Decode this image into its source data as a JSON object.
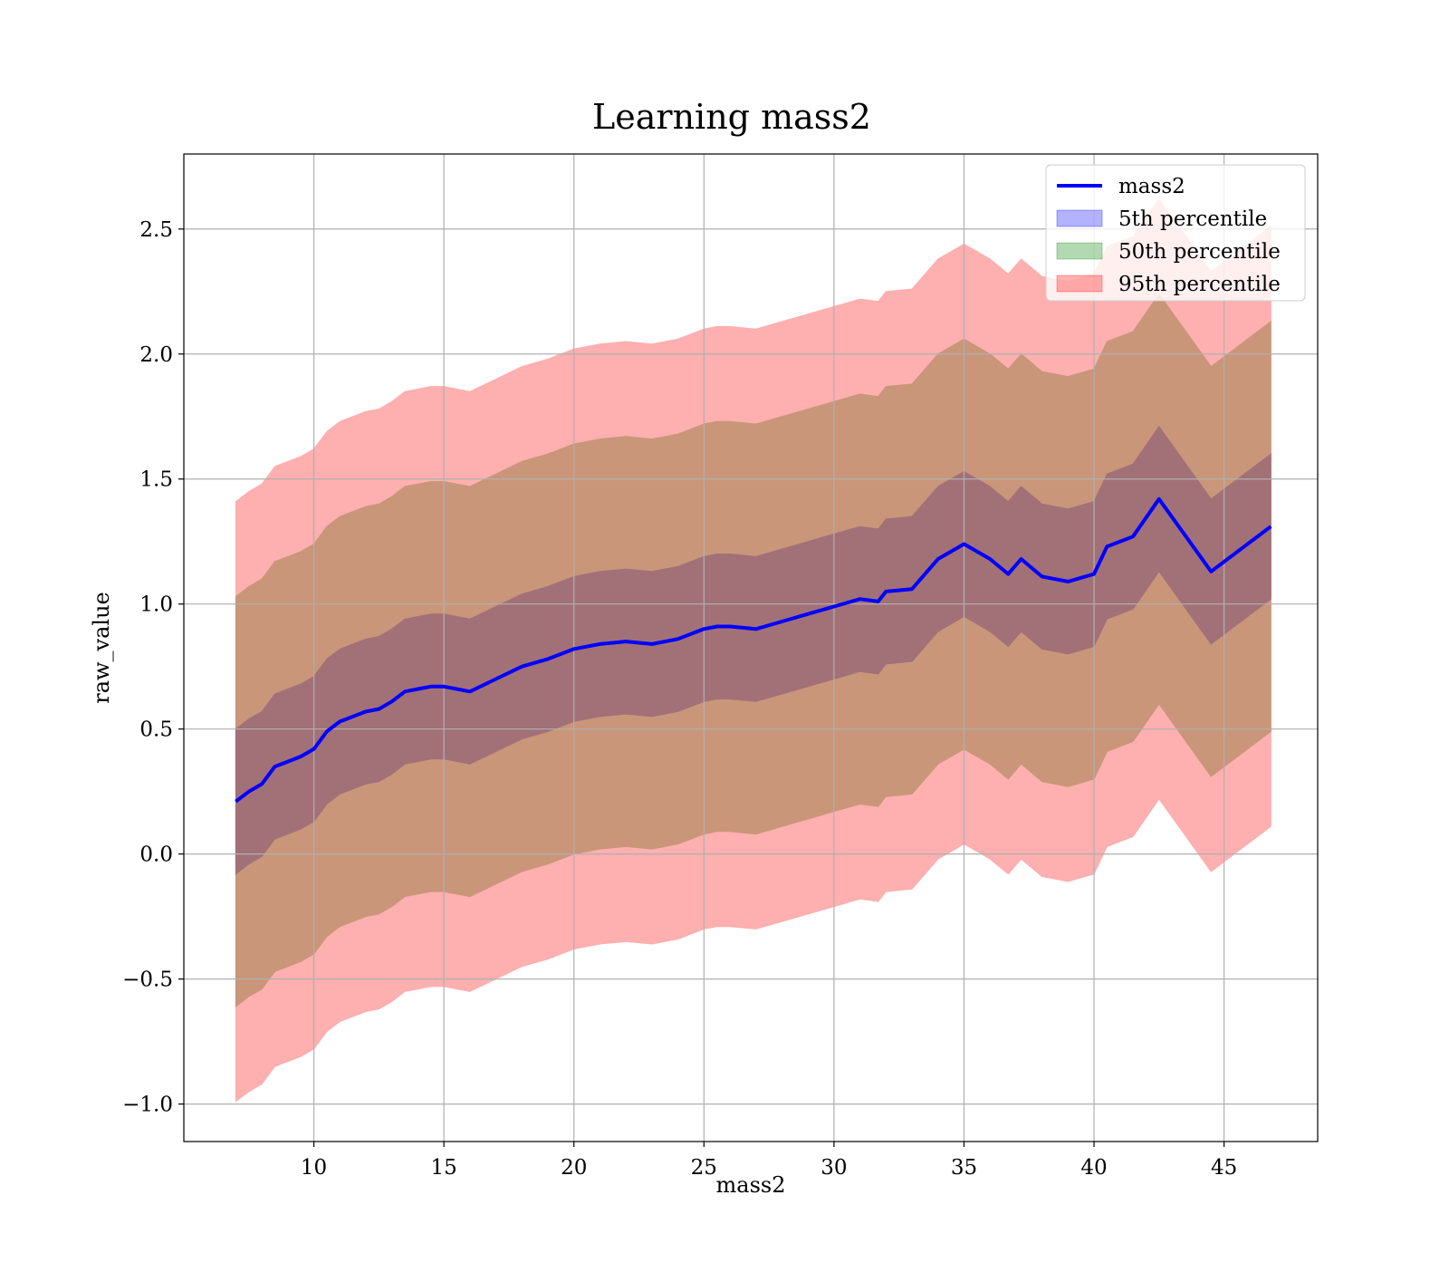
{
  "chart_data": {
    "type": "area",
    "title": "Learning mass2",
    "xlabel": "mass2",
    "ylabel": "raw_value",
    "xlim": [
      5,
      48.6
    ],
    "ylim": [
      -1.15,
      2.8
    ],
    "xticks": [
      10,
      15,
      20,
      25,
      30,
      35,
      40,
      45
    ],
    "yticks": [
      -1.0,
      -0.5,
      0.0,
      0.5,
      1.0,
      1.5,
      2.0,
      2.5
    ],
    "ytick_labels": [
      "−1.0",
      "−0.5",
      "0.0",
      "0.5",
      "1.0",
      "1.5",
      "2.0",
      "2.5"
    ],
    "grid": true,
    "legend_position": "top-right",
    "colors": {
      "line": "#0000ff",
      "band_5th": "#0000ff",
      "band_50th": "#008000",
      "band_95th": "#ff0000",
      "band_overlap_dark": "#a27178",
      "band_overlap_mid": "#c9967a",
      "band_outer": "#feafaf"
    },
    "legend": [
      {
        "label": "mass2",
        "kind": "line",
        "color": "#0000ff"
      },
      {
        "label": "5th percentile",
        "kind": "patch",
        "color": "#0000ff"
      },
      {
        "label": "50th percentile",
        "kind": "patch",
        "color": "#008000"
      },
      {
        "label": "95th percentile",
        "kind": "patch",
        "color": "#ff0000"
      }
    ],
    "x": [
      7.0,
      7.5,
      8.0,
      8.5,
      9.0,
      9.5,
      10.0,
      10.5,
      11.0,
      11.5,
      12.0,
      12.5,
      13.0,
      13.5,
      14.0,
      14.5,
      15.0,
      16.0,
      17.0,
      18.0,
      19.0,
      20.0,
      21.0,
      22.0,
      23.0,
      24.0,
      25.0,
      25.5,
      26.0,
      27.0,
      28.0,
      29.0,
      30.0,
      31.0,
      31.7,
      32.0,
      33.0,
      34.0,
      35.0,
      36.0,
      36.7,
      37.2,
      38.0,
      39.0,
      40.0,
      40.5,
      41.5,
      42.5,
      44.5,
      46.8
    ],
    "series": [
      {
        "name": "mass2",
        "values": [
          0.21,
          0.25,
          0.28,
          0.35,
          0.37,
          0.39,
          0.42,
          0.49,
          0.53,
          0.55,
          0.57,
          0.58,
          0.61,
          0.65,
          0.66,
          0.67,
          0.67,
          0.65,
          0.7,
          0.75,
          0.78,
          0.82,
          0.84,
          0.85,
          0.84,
          0.86,
          0.9,
          0.91,
          0.91,
          0.9,
          0.93,
          0.96,
          0.99,
          1.02,
          1.01,
          1.05,
          1.06,
          1.18,
          1.24,
          1.18,
          1.12,
          1.18,
          1.11,
          1.09,
          1.12,
          1.23,
          1.27,
          1.42,
          1.13,
          1.31
        ]
      }
    ],
    "bands": [
      {
        "name": "95th percentile",
        "offset": 1.2
      },
      {
        "name": "50th percentile",
        "offset": 0.82
      },
      {
        "name": "5th percentile",
        "offset": 0.29
      }
    ]
  }
}
